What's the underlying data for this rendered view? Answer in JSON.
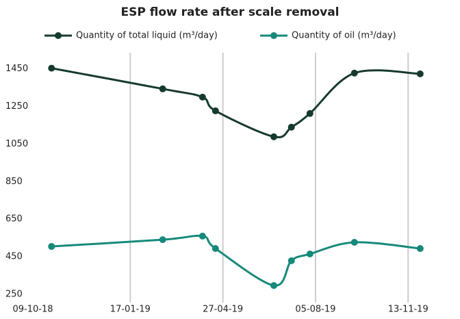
{
  "chart_data": {
    "type": "line",
    "title": "ESP flow rate after scale removal",
    "x": [
      "2018-10-24",
      "2019-02-21",
      "2019-04-05",
      "2019-04-19",
      "2019-06-21",
      "2019-07-10",
      "2019-07-30",
      "2019-09-16",
      "2019-11-26"
    ],
    "series": [
      {
        "name": "Quantity of total liquid (m³/day)",
        "color": "#173a2f",
        "values": [
          1454,
          1344,
          1300,
          1227,
          1089,
          1140,
          1213,
          1428,
          1424
        ]
      },
      {
        "name": "Quantity of oil (m³/day)",
        "color": "#16897a",
        "values": [
          505,
          541,
          560,
          494,
          297,
          429,
          465,
          527,
          494
        ]
      }
    ],
    "xlim": [
      "2018-10-09",
      "2020-01-08"
    ],
    "xticks": [
      {
        "value": "2018-10-09",
        "label": "09-10-18"
      },
      {
        "value": "2019-01-17",
        "label": "17-01-19"
      },
      {
        "value": "2019-04-27",
        "label": "27-04-19"
      },
      {
        "value": "2019-08-05",
        "label": "05-08-19"
      },
      {
        "value": "2019-11-13",
        "label": "13-11-19"
      }
    ],
    "ylim": [
      250,
      1500
    ],
    "yticks": [
      250,
      450,
      650,
      850,
      1050,
      1250,
      1450
    ],
    "grid": true,
    "legend": "top"
  }
}
